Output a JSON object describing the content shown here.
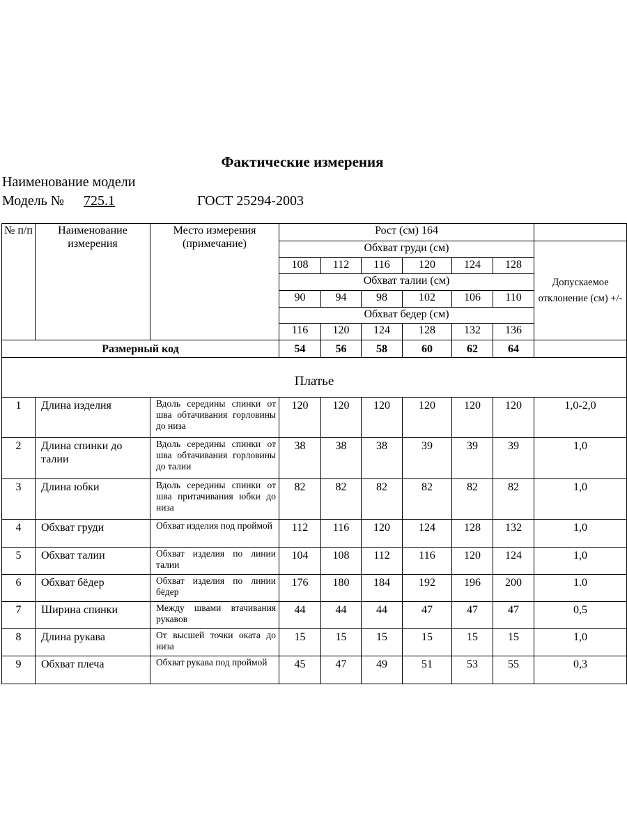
{
  "title": "Фактические измерения",
  "model_name_label": "Наименование модели",
  "model_no_label": "Модель №",
  "model_no": "725.1",
  "standard": "ГОСТ 25294-2003",
  "header": {
    "num": "№ п/п",
    "name": "Наименование измерения",
    "place": "Место измерения (примечание)",
    "height": "Рост (см) 164",
    "chest": "Обхват груди (см)",
    "chest_values": [
      "108",
      "112",
      "116",
      "120",
      "124",
      "128"
    ],
    "waist": "Обхват талии (см)",
    "waist_values": [
      "90",
      "94",
      "98",
      "102",
      "106",
      "110"
    ],
    "hips": "Обхват бедер (см)",
    "hips_values": [
      "116",
      "120",
      "124",
      "128",
      "132",
      "136"
    ],
    "tolerance": "Допускаемое отклонение (см) +/-"
  },
  "size_code_label": "Размерный код",
  "size_codes": [
    "54",
    "56",
    "58",
    "60",
    "62",
    "64"
  ],
  "section": "Платье",
  "rows": [
    {
      "n": "1",
      "name": "Длина изделия",
      "desc": "Вдоль середины спинки от шва обтачивания горловины до низа",
      "values": [
        "120",
        "120",
        "120",
        "120",
        "120",
        "120"
      ],
      "tol": "1,0-2,0"
    },
    {
      "n": "2",
      "name": "Длина спинки до талии",
      "desc": "Вдоль середины спинки от шва обтачивания горловины до талии",
      "values": [
        "38",
        "38",
        "38",
        "39",
        "39",
        "39"
      ],
      "tol": "1,0"
    },
    {
      "n": "3",
      "name": "Длина юбки",
      "desc": "Вдоль середины спинки от шва притачивания юбки до низа",
      "values": [
        "82",
        "82",
        "82",
        "82",
        "82",
        "82"
      ],
      "tol": "1,0"
    },
    {
      "n": "4",
      "name": "Обхват груди",
      "desc": "Обхват изделия под проймой",
      "values": [
        "112",
        "116",
        "120",
        "124",
        "128",
        "132"
      ],
      "tol": "1,0"
    },
    {
      "n": "5",
      "name": "Обхват талии",
      "desc": "Обхват изделия по линии талии",
      "values": [
        "104",
        "108",
        "112",
        "116",
        "120",
        "124"
      ],
      "tol": "1,0"
    },
    {
      "n": "6",
      "name": "Обхват бёдер",
      "desc": "Обхват изделия по линии бёдер",
      "values": [
        "176",
        "180",
        "184",
        "192",
        "196",
        "200"
      ],
      "tol": "1.0"
    },
    {
      "n": "7",
      "name": "Ширина спинки",
      "desc": "Между швами втачивания рукавов",
      "values": [
        "44",
        "44",
        "44",
        "47",
        "47",
        "47"
      ],
      "tol": "0,5"
    },
    {
      "n": "8",
      "name": "Длина рукава",
      "desc": "От высшей точки оката до низа",
      "values": [
        "15",
        "15",
        "15",
        "15",
        "15",
        "15"
      ],
      "tol": "1,0"
    },
    {
      "n": "9",
      "name": "Обхват плеча",
      "desc": "Обхват рукава под проймой",
      "values": [
        "45",
        "47",
        "49",
        "51",
        "53",
        "55"
      ],
      "tol": "0,3"
    }
  ]
}
